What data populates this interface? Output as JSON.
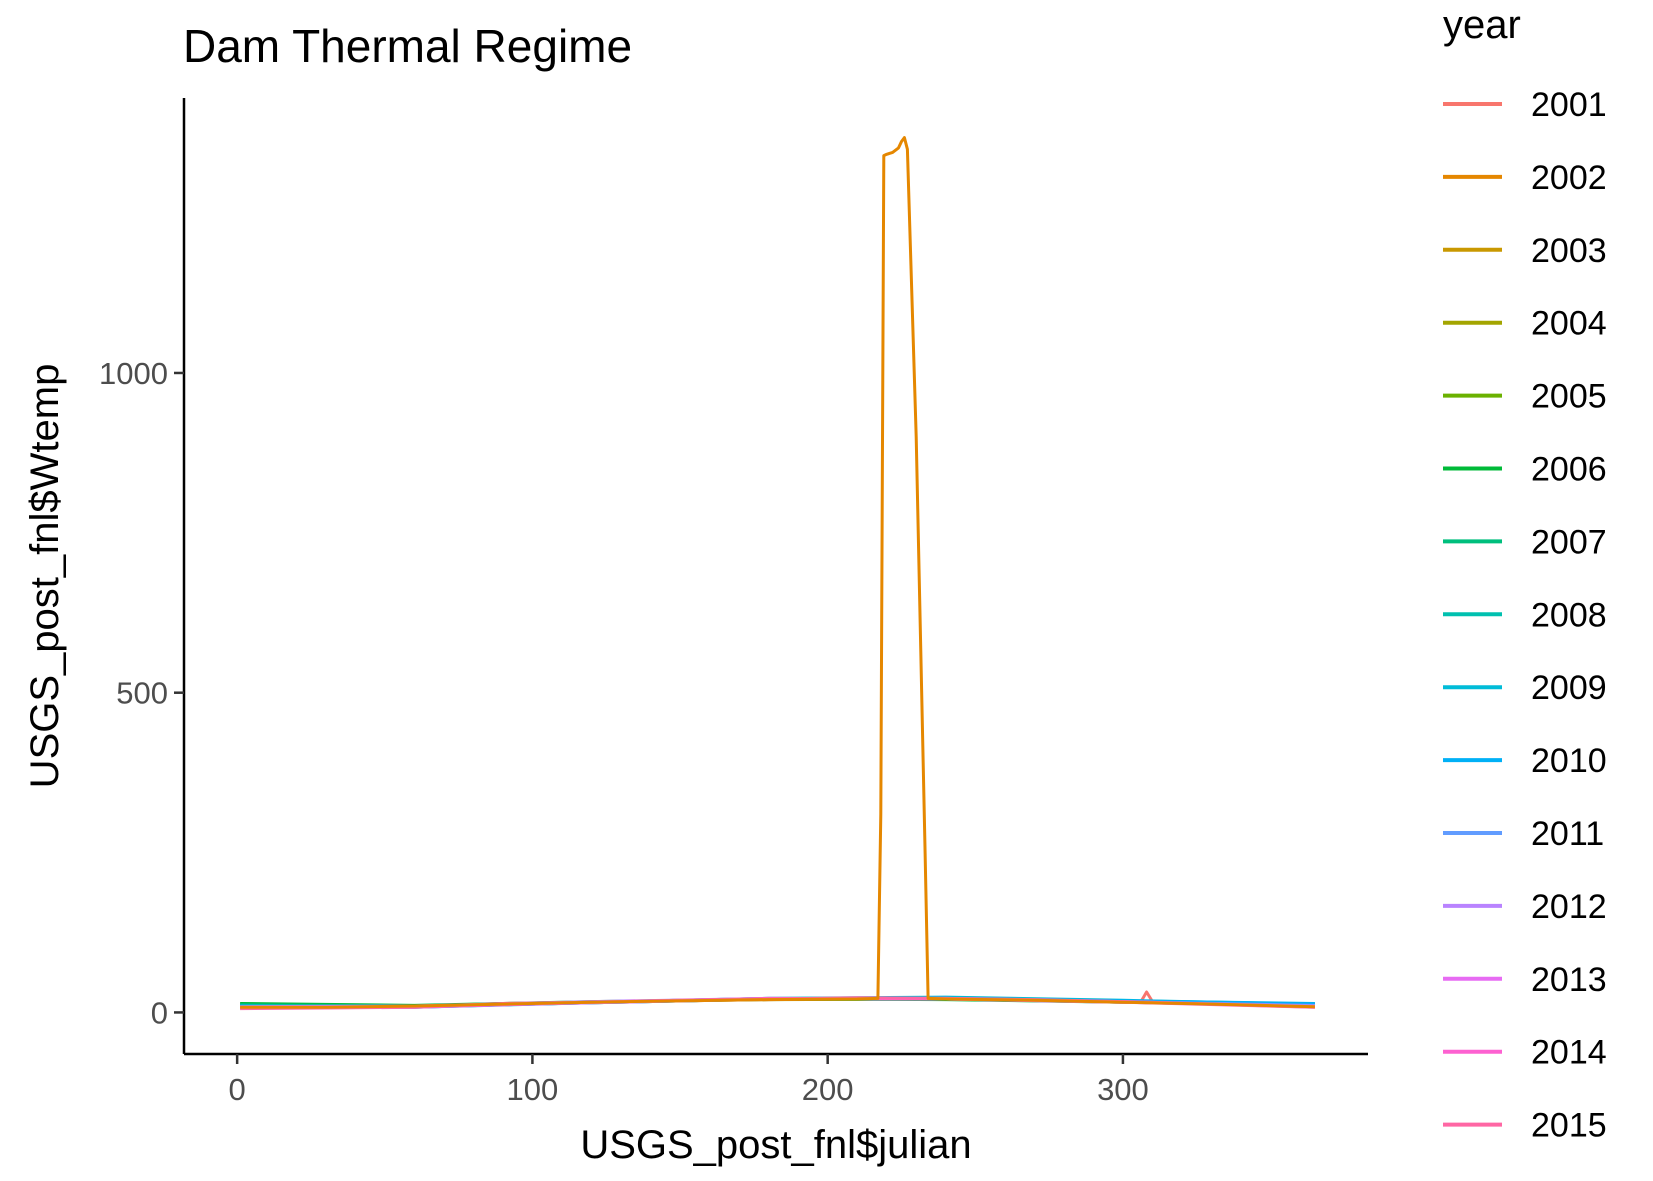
{
  "chart_data": {
    "type": "line",
    "title": "Dam Thermal Regime",
    "xlabel": "USGS_post_fnl$julian",
    "ylabel": "USGS_post_fnl$Wtemp",
    "xlim": [
      -18,
      383
    ],
    "ylim": [
      -65,
      1430
    ],
    "x_ticks": [
      0,
      100,
      200,
      300
    ],
    "y_ticks": [
      0,
      500,
      1000
    ],
    "grid": false,
    "legend": {
      "title": "year",
      "placement": "right",
      "entries": [
        {
          "name": "2001",
          "color": "#F8766D"
        },
        {
          "name": "2002",
          "color": "#E58700"
        },
        {
          "name": "2003",
          "color": "#C99800"
        },
        {
          "name": "2004",
          "color": "#A3A500"
        },
        {
          "name": "2005",
          "color": "#6BB100"
        },
        {
          "name": "2006",
          "color": "#00BA38"
        },
        {
          "name": "2007",
          "color": "#00BF7D"
        },
        {
          "name": "2008",
          "color": "#00C0AF"
        },
        {
          "name": "2009",
          "color": "#00BCD8"
        },
        {
          "name": "2010",
          "color": "#00B0F6"
        },
        {
          "name": "2011",
          "color": "#619CFF"
        },
        {
          "name": "2012",
          "color": "#B983FF"
        },
        {
          "name": "2013",
          "color": "#E76BF3"
        },
        {
          "name": "2014",
          "color": "#FD61D1"
        },
        {
          "name": "2015",
          "color": "#FF67A4"
        }
      ]
    },
    "series": [
      {
        "name": "2001",
        "color": "#F8766D",
        "x": [
          1,
          30,
          60,
          90,
          120,
          150,
          180,
          210,
          240,
          270,
          300,
          306,
          308,
          310,
          330,
          365
        ],
        "y": [
          8,
          9,
          10,
          14,
          16,
          18,
          20,
          22,
          21,
          19,
          17,
          16,
          32,
          17,
          14,
          10
        ]
      },
      {
        "name": "2002",
        "color": "#E58700",
        "x": [
          1,
          30,
          60,
          90,
          120,
          150,
          180,
          210,
          217,
          218,
          219,
          220,
          222,
          224,
          225,
          226,
          227,
          230,
          233,
          234,
          240,
          270,
          300,
          330,
          365
        ],
        "y": [
          8,
          8,
          10,
          13,
          16,
          18,
          20,
          21,
          22,
          310,
          1340,
          1342,
          1345,
          1352,
          1362,
          1368,
          1350,
          900,
          250,
          22,
          21,
          19,
          16,
          13,
          9
        ]
      },
      {
        "name": "2003",
        "color": "#C99800",
        "x": [
          1,
          60,
          120,
          180,
          240,
          300,
          365
        ],
        "y": [
          9,
          10,
          16,
          21,
          21,
          16,
          10
        ]
      },
      {
        "name": "2004",
        "color": "#A3A500",
        "x": [
          1,
          60,
          120,
          180,
          240,
          300,
          365
        ],
        "y": [
          9,
          9,
          15,
          21,
          22,
          17,
          11
        ]
      },
      {
        "name": "2005",
        "color": "#6BB100",
        "x": [
          1,
          60,
          120,
          180,
          240,
          300,
          365
        ],
        "y": [
          10,
          10,
          16,
          20,
          21,
          17,
          12
        ]
      },
      {
        "name": "2006",
        "color": "#00BA38",
        "x": [
          1,
          60,
          120,
          180,
          240,
          300,
          365
        ],
        "y": [
          14,
          11,
          17,
          21,
          20,
          16,
          12
        ]
      },
      {
        "name": "2007",
        "color": "#00BF7D",
        "x": [
          1,
          60,
          120,
          180,
          240,
          300,
          365
        ],
        "y": [
          12,
          10,
          16,
          22,
          22,
          18,
          13
        ]
      },
      {
        "name": "2008",
        "color": "#00C0AF",
        "x": [
          1,
          60,
          120,
          180,
          240,
          300,
          365
        ],
        "y": [
          11,
          9,
          15,
          21,
          23,
          18,
          12
        ]
      },
      {
        "name": "2009",
        "color": "#00BCD8",
        "x": [
          1,
          60,
          120,
          180,
          240,
          300,
          365
        ],
        "y": [
          10,
          8,
          16,
          22,
          24,
          19,
          13
        ]
      },
      {
        "name": "2010",
        "color": "#00B0F6",
        "x": [
          1,
          60,
          120,
          180,
          240,
          300,
          365
        ],
        "y": [
          9,
          8,
          15,
          21,
          22,
          18,
          14
        ]
      },
      {
        "name": "2011",
        "color": "#619CFF",
        "x": [
          1,
          60,
          120,
          180,
          240,
          300,
          365
        ],
        "y": [
          8,
          9,
          16,
          21,
          21,
          17,
          11
        ]
      },
      {
        "name": "2012",
        "color": "#B983FF",
        "x": [
          1,
          60,
          120,
          180,
          240,
          300,
          365
        ],
        "y": [
          9,
          10,
          17,
          22,
          21,
          16,
          10
        ]
      },
      {
        "name": "2013",
        "color": "#E76BF3",
        "x": [
          1,
          60,
          120,
          180,
          240,
          300,
          365
        ],
        "y": [
          8,
          9,
          15,
          21,
          22,
          17,
          9
        ]
      },
      {
        "name": "2014",
        "color": "#FD61D1",
        "x": [
          1,
          60,
          120,
          180,
          240,
          300,
          365
        ],
        "y": [
          7,
          8,
          16,
          22,
          21,
          16,
          8
        ]
      },
      {
        "name": "2015",
        "color": "#FF67A4",
        "x": [
          1,
          30,
          60,
          90,
          120,
          150,
          180,
          210,
          240,
          270,
          300,
          330,
          365
        ],
        "y": [
          6,
          7,
          8,
          14,
          16,
          19,
          21,
          23,
          22,
          20,
          17,
          13,
          8
        ]
      }
    ]
  }
}
